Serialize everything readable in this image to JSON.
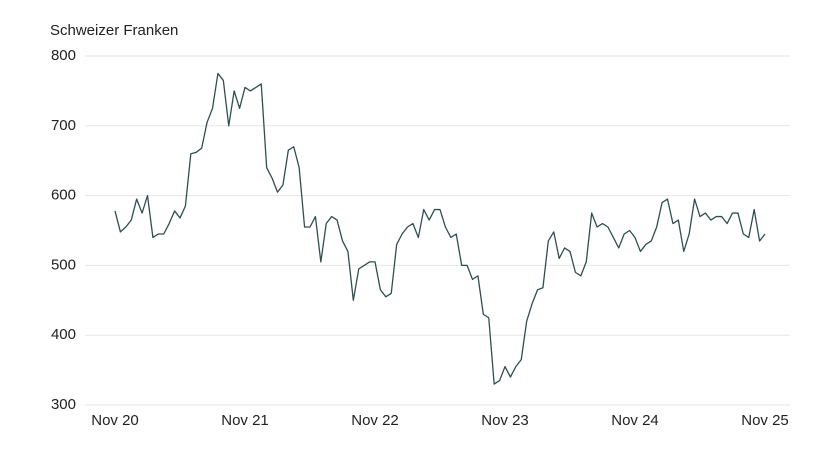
{
  "chart_data": {
    "type": "line",
    "y_label": "Schweizer Franken",
    "color": "#2f4f4f",
    "grid": true,
    "ylim": [
      300,
      800
    ],
    "yticks": [
      300,
      400,
      500,
      600,
      700,
      800
    ],
    "xlim": [
      0,
      120
    ],
    "xticks": [
      {
        "value": 0,
        "label": "Nov 20"
      },
      {
        "value": 24,
        "label": "Nov 21"
      },
      {
        "value": 48,
        "label": "Nov 22"
      },
      {
        "value": 72,
        "label": "Nov 23"
      },
      {
        "value": 96,
        "label": "Nov 24"
      },
      {
        "value": 120,
        "label": "Nov 25"
      }
    ],
    "values": [
      578,
      548,
      555,
      565,
      595,
      575,
      600,
      540,
      545,
      545,
      560,
      578,
      568,
      585,
      660,
      662,
      668,
      705,
      725,
      775,
      765,
      700,
      750,
      725,
      755,
      750,
      755,
      760,
      640,
      625,
      605,
      615,
      665,
      670,
      640,
      555,
      555,
      570,
      505,
      560,
      570,
      565,
      535,
      520,
      450,
      495,
      500,
      505,
      505,
      465,
      455,
      460,
      530,
      545,
      555,
      560,
      540,
      580,
      565,
      580,
      580,
      555,
      540,
      545,
      500,
      500,
      480,
      485,
      430,
      425,
      330,
      335,
      355,
      340,
      355,
      365,
      420,
      445,
      465,
      468,
      535,
      548,
      510,
      525,
      520,
      490,
      485,
      505,
      575,
      555,
      560,
      555,
      540,
      525,
      545,
      550,
      540,
      520,
      530,
      535,
      555,
      590,
      595,
      560,
      565,
      520,
      545,
      595,
      570,
      575,
      565,
      570,
      570,
      560,
      575,
      575,
      545,
      540,
      580,
      535,
      545
    ]
  }
}
